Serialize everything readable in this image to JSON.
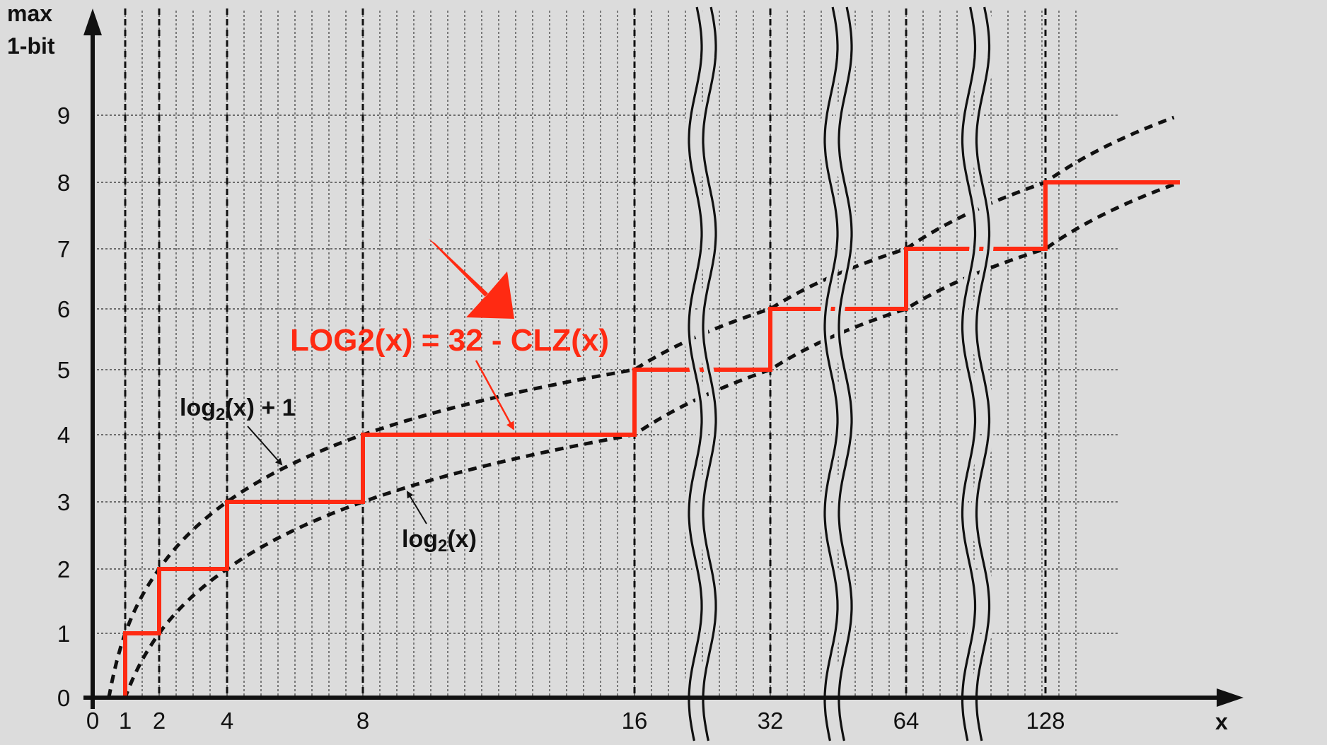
{
  "chart_data": {
    "type": "line",
    "title": "",
    "ylabel": [
      "max",
      "1-bit"
    ],
    "xlabel": "x",
    "ylim": [
      0,
      9
    ],
    "x_tick_labels": [
      "0",
      "1",
      "2",
      "4",
      "8",
      "16",
      "32",
      "64",
      "128"
    ],
    "x_tick_values": [
      0,
      1,
      2,
      4,
      8,
      16,
      32,
      64,
      128
    ],
    "y_tick_labels": [
      "0",
      "1",
      "2",
      "3",
      "4",
      "5",
      "6",
      "7",
      "8",
      "9"
    ],
    "y_tick_values": [
      0,
      1,
      2,
      3,
      4,
      5,
      6,
      7,
      8,
      9
    ],
    "axis_breaks_between": [
      [
        16,
        32
      ],
      [
        32,
        64
      ],
      [
        64,
        128
      ]
    ],
    "grid": true,
    "series": [
      {
        "name": "LOG2(x) = 32 - CLZ(x)",
        "style": "step",
        "color": "#ff2a12",
        "points": [
          [
            0,
            0
          ],
          [
            1,
            0
          ],
          [
            1,
            1
          ],
          [
            2,
            1
          ],
          [
            2,
            2
          ],
          [
            4,
            2
          ],
          [
            4,
            3
          ],
          [
            8,
            3
          ],
          [
            8,
            4
          ],
          [
            16,
            4
          ],
          [
            16,
            5
          ],
          [
            32,
            5
          ],
          [
            32,
            6
          ],
          [
            64,
            6
          ],
          [
            64,
            7
          ],
          [
            128,
            7
          ],
          [
            128,
            8
          ],
          [
            256,
            8
          ]
        ]
      },
      {
        "name": "log2(x) + 1",
        "style": "dashed",
        "color": "#111111",
        "function": "log2(x) + 1"
      },
      {
        "name": "log2(x)",
        "style": "dashed",
        "color": "#111111",
        "function": "log2(x)"
      }
    ],
    "annotations": [
      {
        "text_parts": [
          "log",
          "2",
          "(x) + 1"
        ],
        "points_to": "log2(x) + 1"
      },
      {
        "text_parts": [
          "log",
          "2",
          "(x)"
        ],
        "points_to": "log2(x)"
      },
      {
        "text": "LOG2(x) = 32 - CLZ(x)",
        "points_to": "LOG2(x) = 32 - CLZ(x)",
        "color": "#ff2a12"
      }
    ]
  }
}
